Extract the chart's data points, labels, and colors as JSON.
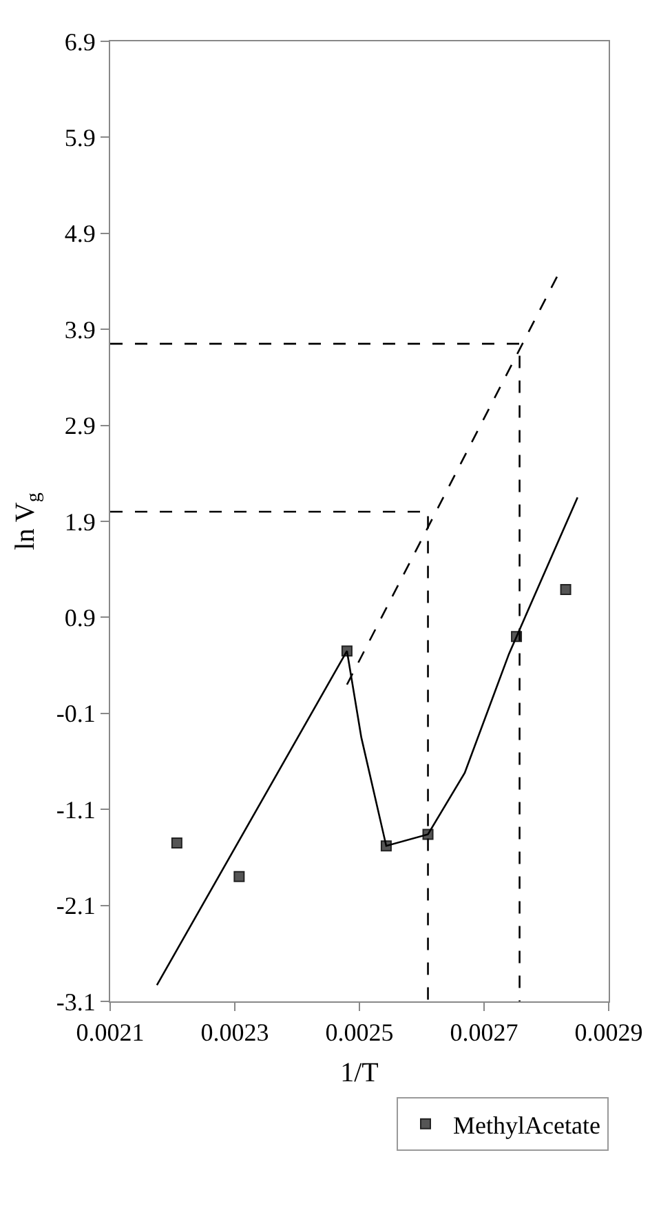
{
  "chart_data": {
    "type": "scatter",
    "xlabel": "1/T",
    "ylabel": "ln V$_{g}$",
    "xlim": [
      0.0021,
      0.0029
    ],
    "xticks": [
      0.0021,
      0.0023,
      0.0025,
      0.0027,
      0.0029
    ],
    "ylim": [
      -3.1,
      6.9
    ],
    "yticks": [
      -3.1,
      -2.1,
      -1.1,
      -0.1,
      0.9,
      1.9,
      2.9,
      3.9,
      4.9,
      5.9,
      6.9
    ],
    "grid": false,
    "legend": "bottom right",
    "series": [
      {
        "type": "scatter",
        "name": "MethylAcetate",
        "color": "#555555",
        "marker": "square",
        "x": [
          0.002207,
          0.002307,
          0.00248,
          0.002543,
          0.00261,
          0.002752,
          0.002831
        ],
        "values": [
          -1.45,
          -1.8,
          0.55,
          -1.48,
          -1.36,
          0.7,
          1.19
        ]
      },
      {
        "type": "line",
        "color": "#000000",
        "line_style": "solid",
        "x": [
          0.002175,
          0.00248,
          0.002503,
          0.002543,
          0.00261,
          0.002669,
          0.00274,
          0.00285
        ],
        "values": [
          -2.93,
          0.55,
          -0.35,
          -1.48,
          -1.36,
          -0.72,
          0.52,
          2.15
        ]
      },
      {
        "type": "line",
        "color": "#000000",
        "line_style": "dashed",
        "x": [
          0.00248,
          0.002818
        ],
        "values": [
          0.2,
          4.46
        ]
      },
      {
        "type": "line",
        "color": "#000000",
        "line_style": "dashed",
        "x": [
          0.0021,
          0.002757,
          0.002757
        ],
        "values": [
          3.75,
          3.75,
          -3.1
        ]
      },
      {
        "type": "line",
        "color": "#000000",
        "line_style": "dashed",
        "x": [
          0.0021,
          0.00261,
          0.00261
        ],
        "values": [
          2.0,
          2.0,
          -3.1
        ]
      }
    ]
  }
}
